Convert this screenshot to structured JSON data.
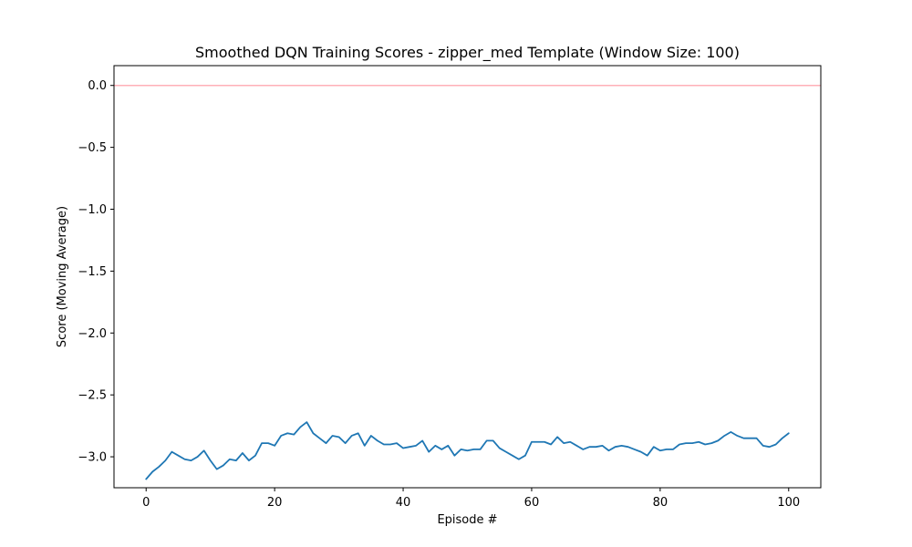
{
  "colors": {
    "line": "#1f77b4",
    "reference_line": "#ffb0b8",
    "axes": "#000000",
    "background": "#ffffff"
  },
  "chart_data": {
    "type": "line",
    "title": "Smoothed DQN Training Scores - zipper_med Template (Window Size: 100)",
    "xlabel": "Episode #",
    "ylabel": "Score (Moving Average)",
    "xlim": [
      -5,
      105
    ],
    "ylim": [
      -3.25,
      0.16
    ],
    "grid": false,
    "x_ticks": [
      0,
      20,
      40,
      60,
      80,
      100
    ],
    "x_tick_labels": [
      "0",
      "20",
      "40",
      "60",
      "80",
      "100"
    ],
    "y_ticks": [
      0.0,
      -0.5,
      -1.0,
      -1.5,
      -2.0,
      -2.5,
      -3.0
    ],
    "y_tick_labels": [
      "0.0",
      "−0.5",
      "−1.0",
      "−1.5",
      "−2.0",
      "−2.5",
      "−3.0"
    ],
    "reference_line": {
      "y": 0.0
    },
    "series": [
      {
        "x": [
          0,
          1,
          2,
          3,
          4,
          5,
          6,
          7,
          8,
          9,
          10,
          11,
          12,
          13,
          14,
          15,
          16,
          17,
          18,
          19,
          20,
          21,
          22,
          23,
          24,
          25,
          26,
          27,
          28,
          29,
          30,
          31,
          32,
          33,
          34,
          35,
          36,
          37,
          38,
          39,
          40,
          41,
          42,
          43,
          44,
          45,
          46,
          47,
          48,
          49,
          50,
          51,
          52,
          53,
          54,
          55,
          56,
          57,
          58,
          59,
          60,
          61,
          62,
          63,
          64,
          65,
          66,
          67,
          68,
          69,
          70,
          71,
          72,
          73,
          74,
          75,
          76,
          77,
          78,
          79,
          80,
          81,
          82,
          83,
          84,
          85,
          86,
          87,
          88,
          89,
          90,
          91,
          92,
          93,
          94,
          95,
          96,
          97,
          98,
          99,
          100
        ],
        "values": [
          -3.18,
          -3.12,
          -3.08,
          -3.03,
          -2.96,
          -2.99,
          -3.02,
          -3.03,
          -3.0,
          -2.95,
          -3.03,
          -3.1,
          -3.07,
          -3.02,
          -3.03,
          -2.97,
          -3.03,
          -2.99,
          -2.89,
          -2.89,
          -2.91,
          -2.83,
          -2.81,
          -2.82,
          -2.76,
          -2.72,
          -2.81,
          -2.85,
          -2.89,
          -2.83,
          -2.84,
          -2.89,
          -2.83,
          -2.81,
          -2.91,
          -2.83,
          -2.87,
          -2.9,
          -2.9,
          -2.89,
          -2.93,
          -2.92,
          -2.91,
          -2.87,
          -2.96,
          -2.91,
          -2.94,
          -2.91,
          -2.99,
          -2.94,
          -2.95,
          -2.94,
          -2.94,
          -2.87,
          -2.87,
          -2.93,
          -2.96,
          -2.99,
          -3.02,
          -2.99,
          -2.88,
          -2.88,
          -2.88,
          -2.9,
          -2.84,
          -2.89,
          -2.88,
          -2.91,
          -2.94,
          -2.92,
          -2.92,
          -2.91,
          -2.95,
          -2.92,
          -2.91,
          -2.92,
          -2.94,
          -2.96,
          -2.99,
          -2.92,
          -2.95,
          -2.94,
          -2.94,
          -2.9,
          -2.89,
          -2.89,
          -2.88,
          -2.9,
          -2.89,
          -2.87,
          -2.83,
          -2.8,
          -2.83,
          -2.85,
          -2.85,
          -2.85,
          -2.91,
          -2.92,
          -2.9,
          -2.85,
          -2.81
        ]
      }
    ]
  }
}
